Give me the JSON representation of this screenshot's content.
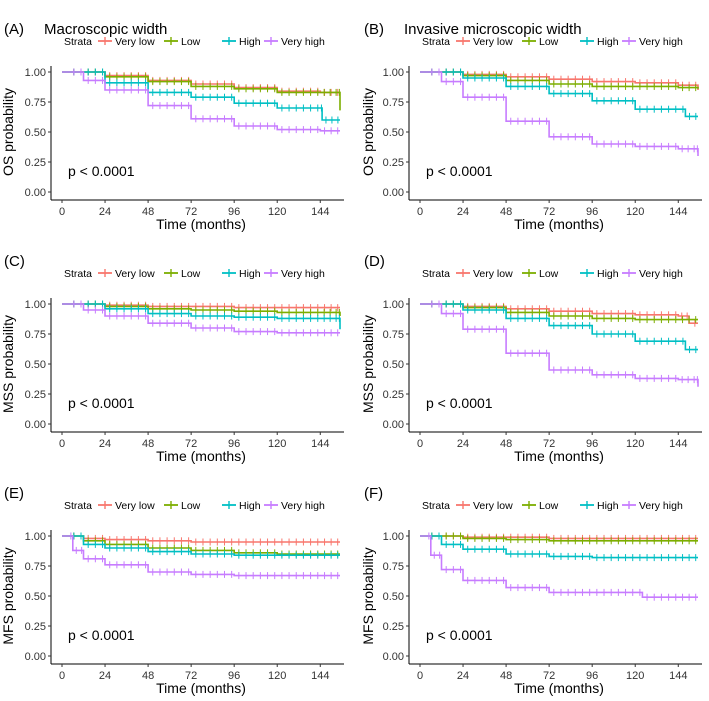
{
  "legend": {
    "title": "Strata",
    "labels": [
      "Very low",
      "Low",
      "High",
      "Very high"
    ],
    "colors": [
      "#F8766D",
      "#7CAE00",
      "#00BFC4",
      "#C77CFF"
    ]
  },
  "chart_data": [
    {
      "type": "line",
      "panel_label": "(A)",
      "title": "Macroscopic width",
      "xlabel": "Time (months)",
      "ylabel": "OS probability",
      "xlim": [
        0,
        155
      ],
      "ylim": [
        0,
        1
      ],
      "xticks": [
        0,
        24,
        48,
        72,
        96,
        120,
        144
      ],
      "yticks": [
        "0.00",
        "0.25",
        "0.50",
        "0.75",
        "1.00"
      ],
      "pvalue": "p < 0.0001",
      "series": [
        {
          "name": "Very low",
          "points": [
            [
              0,
              1
            ],
            [
              24,
              0.97
            ],
            [
              48,
              0.93
            ],
            [
              72,
              0.9
            ],
            [
              96,
              0.87
            ],
            [
              120,
              0.84
            ],
            [
              144,
              0.83
            ],
            [
              155,
              0.83
            ]
          ]
        },
        {
          "name": "Low",
          "points": [
            [
              0,
              1
            ],
            [
              24,
              0.96
            ],
            [
              48,
              0.92
            ],
            [
              72,
              0.88
            ],
            [
              96,
              0.86
            ],
            [
              120,
              0.83
            ],
            [
              144,
              0.83
            ],
            [
              154,
              0.83
            ],
            [
              155,
              0.68
            ]
          ]
        },
        {
          "name": "High",
          "points": [
            [
              0,
              1
            ],
            [
              24,
              0.91
            ],
            [
              48,
              0.83
            ],
            [
              72,
              0.79
            ],
            [
              96,
              0.74
            ],
            [
              120,
              0.7
            ],
            [
              144,
              0.7
            ],
            [
              145,
              0.6
            ],
            [
              155,
              0.6
            ]
          ]
        },
        {
          "name": "Very high",
          "points": [
            [
              0,
              1
            ],
            [
              12,
              0.93
            ],
            [
              24,
              0.85
            ],
            [
              48,
              0.72
            ],
            [
              72,
              0.61
            ],
            [
              96,
              0.55
            ],
            [
              120,
              0.52
            ],
            [
              144,
              0.51
            ],
            [
              155,
              0.51
            ]
          ]
        }
      ]
    },
    {
      "type": "line",
      "panel_label": "(B)",
      "title": "Invasive microscopic width",
      "xlabel": "Time (months)",
      "ylabel": "OS probability",
      "xlim": [
        0,
        155
      ],
      "ylim": [
        0,
        1
      ],
      "xticks": [
        0,
        24,
        48,
        72,
        96,
        120,
        144
      ],
      "yticks": [
        "0.00",
        "0.25",
        "0.50",
        "0.75",
        "1.00"
      ],
      "pvalue": "p < 0.0001",
      "series": [
        {
          "name": "Very low",
          "points": [
            [
              0,
              1
            ],
            [
              24,
              0.98
            ],
            [
              48,
              0.96
            ],
            [
              72,
              0.94
            ],
            [
              96,
              0.92
            ],
            [
              120,
              0.91
            ],
            [
              144,
              0.89
            ],
            [
              155,
              0.85
            ]
          ]
        },
        {
          "name": "Low",
          "points": [
            [
              0,
              1
            ],
            [
              24,
              0.97
            ],
            [
              48,
              0.93
            ],
            [
              72,
              0.9
            ],
            [
              96,
              0.88
            ],
            [
              120,
              0.88
            ],
            [
              144,
              0.87
            ],
            [
              155,
              0.86
            ]
          ]
        },
        {
          "name": "High",
          "points": [
            [
              0,
              1
            ],
            [
              24,
              0.95
            ],
            [
              48,
              0.88
            ],
            [
              72,
              0.82
            ],
            [
              96,
              0.76
            ],
            [
              120,
              0.69
            ],
            [
              144,
              0.69
            ],
            [
              148,
              0.63
            ],
            [
              155,
              0.63
            ]
          ]
        },
        {
          "name": "Very high",
          "points": [
            [
              0,
              1
            ],
            [
              12,
              0.92
            ],
            [
              24,
              0.79
            ],
            [
              48,
              0.59
            ],
            [
              72,
              0.46
            ],
            [
              96,
              0.4
            ],
            [
              120,
              0.38
            ],
            [
              144,
              0.36
            ],
            [
              154,
              0.36
            ],
            [
              155,
              0.3
            ]
          ]
        }
      ]
    },
    {
      "type": "line",
      "panel_label": "(C)",
      "title": "",
      "xlabel": "Time (months)",
      "ylabel": "MSS probability",
      "xlim": [
        0,
        155
      ],
      "ylim": [
        0,
        1
      ],
      "xticks": [
        0,
        24,
        48,
        72,
        96,
        120,
        144
      ],
      "yticks": [
        "0.00",
        "0.25",
        "0.50",
        "0.75",
        "1.00"
      ],
      "pvalue": "p < 0.0001",
      "series": [
        {
          "name": "Very low",
          "points": [
            [
              0,
              1
            ],
            [
              24,
              0.99
            ],
            [
              48,
              0.98
            ],
            [
              72,
              0.98
            ],
            [
              96,
              0.97
            ],
            [
              120,
              0.97
            ],
            [
              144,
              0.97
            ],
            [
              155,
              0.97
            ]
          ]
        },
        {
          "name": "Low",
          "points": [
            [
              0,
              1
            ],
            [
              24,
              0.98
            ],
            [
              48,
              0.96
            ],
            [
              72,
              0.95
            ],
            [
              96,
              0.94
            ],
            [
              120,
              0.93
            ],
            [
              144,
              0.93
            ],
            [
              154,
              0.93
            ],
            [
              155,
              0.9
            ]
          ]
        },
        {
          "name": "High",
          "points": [
            [
              0,
              1
            ],
            [
              24,
              0.96
            ],
            [
              48,
              0.92
            ],
            [
              72,
              0.9
            ],
            [
              96,
              0.89
            ],
            [
              120,
              0.88
            ],
            [
              144,
              0.88
            ],
            [
              154,
              0.88
            ],
            [
              155,
              0.79
            ]
          ]
        },
        {
          "name": "Very high",
          "points": [
            [
              0,
              1
            ],
            [
              12,
              0.95
            ],
            [
              24,
              0.9
            ],
            [
              48,
              0.84
            ],
            [
              72,
              0.8
            ],
            [
              96,
              0.77
            ],
            [
              120,
              0.76
            ],
            [
              144,
              0.76
            ],
            [
              155,
              0.76
            ]
          ]
        }
      ]
    },
    {
      "type": "line",
      "panel_label": "(D)",
      "title": "",
      "xlabel": "Time (months)",
      "ylabel": "MSS probability",
      "xlim": [
        0,
        155
      ],
      "ylim": [
        0,
        1
      ],
      "xticks": [
        0,
        24,
        48,
        72,
        96,
        120,
        144
      ],
      "yticks": [
        "0.00",
        "0.25",
        "0.50",
        "0.75",
        "1.00"
      ],
      "pvalue": "p < 0.0001",
      "series": [
        {
          "name": "Very low",
          "points": [
            [
              0,
              1
            ],
            [
              24,
              0.98
            ],
            [
              48,
              0.96
            ],
            [
              72,
              0.94
            ],
            [
              96,
              0.92
            ],
            [
              120,
              0.91
            ],
            [
              144,
              0.9
            ],
            [
              150,
              0.84
            ],
            [
              155,
              0.84
            ]
          ]
        },
        {
          "name": "Low",
          "points": [
            [
              0,
              1
            ],
            [
              24,
              0.97
            ],
            [
              48,
              0.93
            ],
            [
              72,
              0.9
            ],
            [
              96,
              0.88
            ],
            [
              120,
              0.87
            ],
            [
              144,
              0.87
            ],
            [
              155,
              0.87
            ]
          ]
        },
        {
          "name": "High",
          "points": [
            [
              0,
              1
            ],
            [
              24,
              0.95
            ],
            [
              48,
              0.88
            ],
            [
              72,
              0.82
            ],
            [
              96,
              0.75
            ],
            [
              120,
              0.69
            ],
            [
              144,
              0.69
            ],
            [
              148,
              0.62
            ],
            [
              155,
              0.62
            ]
          ]
        },
        {
          "name": "Very high",
          "points": [
            [
              0,
              1
            ],
            [
              12,
              0.92
            ],
            [
              24,
              0.79
            ],
            [
              48,
              0.59
            ],
            [
              72,
              0.45
            ],
            [
              96,
              0.41
            ],
            [
              120,
              0.38
            ],
            [
              144,
              0.37
            ],
            [
              154,
              0.37
            ],
            [
              155,
              0.31
            ]
          ]
        }
      ]
    },
    {
      "type": "line",
      "panel_label": "(E)",
      "title": "",
      "xlabel": "Time (months)",
      "ylabel": "MFS probability",
      "xlim": [
        0,
        155
      ],
      "ylim": [
        0,
        1
      ],
      "xticks": [
        0,
        24,
        48,
        72,
        96,
        120,
        144
      ],
      "yticks": [
        "0.00",
        "0.25",
        "0.50",
        "0.75",
        "1.00"
      ],
      "pvalue": "p < 0.0001",
      "series": [
        {
          "name": "Very low",
          "points": [
            [
              0,
              1
            ],
            [
              12,
              0.98
            ],
            [
              24,
              0.97
            ],
            [
              48,
              0.96
            ],
            [
              72,
              0.95
            ],
            [
              96,
              0.95
            ],
            [
              120,
              0.95
            ],
            [
              144,
              0.95
            ],
            [
              155,
              0.95
            ]
          ]
        },
        {
          "name": "Low",
          "points": [
            [
              0,
              1
            ],
            [
              12,
              0.96
            ],
            [
              24,
              0.93
            ],
            [
              48,
              0.9
            ],
            [
              72,
              0.88
            ],
            [
              96,
              0.86
            ],
            [
              120,
              0.85
            ],
            [
              144,
              0.85
            ],
            [
              155,
              0.85
            ]
          ]
        },
        {
          "name": "High",
          "points": [
            [
              0,
              1
            ],
            [
              12,
              0.93
            ],
            [
              24,
              0.9
            ],
            [
              48,
              0.87
            ],
            [
              72,
              0.85
            ],
            [
              96,
              0.84
            ],
            [
              120,
              0.84
            ],
            [
              144,
              0.84
            ],
            [
              155,
              0.84
            ]
          ]
        },
        {
          "name": "Very high",
          "points": [
            [
              0,
              1
            ],
            [
              6,
              0.88
            ],
            [
              12,
              0.81
            ],
            [
              24,
              0.76
            ],
            [
              48,
              0.7
            ],
            [
              72,
              0.68
            ],
            [
              96,
              0.67
            ],
            [
              120,
              0.67
            ],
            [
              144,
              0.67
            ],
            [
              155,
              0.67
            ]
          ]
        }
      ]
    },
    {
      "type": "line",
      "panel_label": "(F)",
      "title": "",
      "xlabel": "Time (months)",
      "ylabel": "MFS probability",
      "xlim": [
        0,
        155
      ],
      "ylim": [
        0,
        1
      ],
      "xticks": [
        0,
        24,
        48,
        72,
        96,
        120,
        144
      ],
      "yticks": [
        "0.00",
        "0.25",
        "0.50",
        "0.75",
        "1.00"
      ],
      "pvalue": "p < 0.0001",
      "series": [
        {
          "name": "Very low",
          "points": [
            [
              0,
              1
            ],
            [
              24,
              0.99
            ],
            [
              48,
              0.99
            ],
            [
              72,
              0.98
            ],
            [
              96,
              0.98
            ],
            [
              120,
              0.98
            ],
            [
              144,
              0.98
            ],
            [
              155,
              0.98
            ]
          ]
        },
        {
          "name": "Low",
          "points": [
            [
              0,
              1
            ],
            [
              24,
              0.98
            ],
            [
              48,
              0.97
            ],
            [
              72,
              0.96
            ],
            [
              96,
              0.96
            ],
            [
              120,
              0.96
            ],
            [
              144,
              0.96
            ],
            [
              155,
              0.96
            ]
          ]
        },
        {
          "name": "High",
          "points": [
            [
              0,
              1
            ],
            [
              12,
              0.93
            ],
            [
              24,
              0.89
            ],
            [
              48,
              0.85
            ],
            [
              72,
              0.83
            ],
            [
              96,
              0.82
            ],
            [
              120,
              0.82
            ],
            [
              144,
              0.82
            ],
            [
              155,
              0.82
            ]
          ]
        },
        {
          "name": "Very high",
          "points": [
            [
              0,
              1
            ],
            [
              6,
              0.84
            ],
            [
              12,
              0.72
            ],
            [
              24,
              0.63
            ],
            [
              48,
              0.57
            ],
            [
              72,
              0.53
            ],
            [
              96,
              0.53
            ],
            [
              120,
              0.53
            ],
            [
              124,
              0.49
            ],
            [
              144,
              0.49
            ],
            [
              155,
              0.49
            ]
          ]
        }
      ]
    }
  ]
}
